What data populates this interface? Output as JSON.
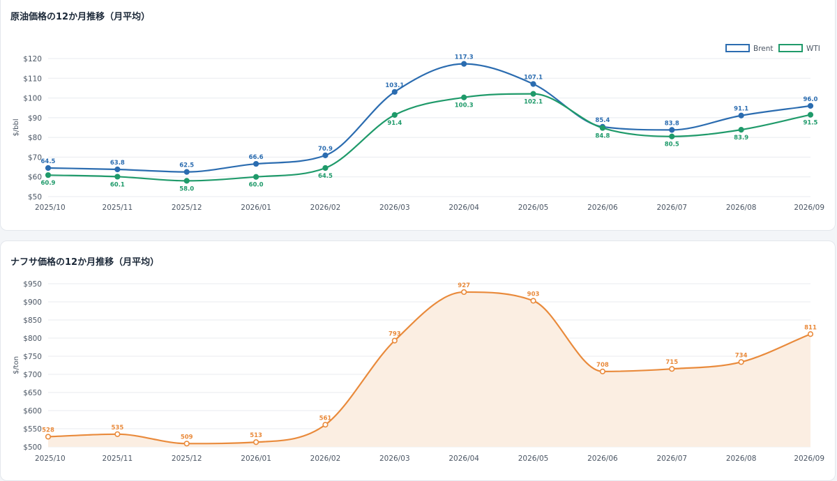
{
  "colors": {
    "brent": "#2b6cb0",
    "wti": "#1f9a6a",
    "naphtha": "#e98a3b",
    "naphtha_fill": "#fbeee2",
    "grid": "#e8ebef",
    "axis_text": "#4a5563"
  },
  "cards": [
    {
      "title": "原油価格の12か月推移（月平均）"
    },
    {
      "title": "ナフサ価格の12か月推移（月平均）"
    }
  ],
  "chart_data": [
    {
      "type": "line",
      "title": "原油価格の12か月推移（月平均）",
      "categories": [
        "2025/10",
        "2025/11",
        "2025/12",
        "2026/01",
        "2026/02",
        "2026/03",
        "2026/04",
        "2026/05",
        "2026/06",
        "2026/07",
        "2026/08",
        "2026/09"
      ],
      "ylabel": "$/bbl",
      "ylim": [
        50,
        120
      ],
      "yticks": [
        "$50",
        "$60",
        "$70",
        "$80",
        "$90",
        "$100",
        "$110",
        "$120"
      ],
      "ytick_values": [
        50,
        60,
        70,
        80,
        90,
        100,
        110,
        120
      ],
      "legend_position": "top-right",
      "grid": true,
      "series": [
        {
          "name": "Brent",
          "color": "#2b6cb0",
          "values": [
            64.5,
            63.8,
            62.5,
            66.6,
            70.9,
            103.1,
            117.3,
            107.1,
            85.4,
            83.8,
            91.1,
            96.0
          ],
          "labels": [
            "64.5",
            "63.8",
            "62.5",
            "66.6",
            "70.9",
            "103.1",
            "117.3",
            "107.1",
            "85.4",
            "83.8",
            "91.1",
            "96.0"
          ]
        },
        {
          "name": "WTI",
          "color": "#1f9a6a",
          "values": [
            60.9,
            60.1,
            58.0,
            60.0,
            64.5,
            91.4,
            100.3,
            102.1,
            84.8,
            80.5,
            83.9,
            91.5
          ],
          "labels": [
            "60.9",
            "60.1",
            "58.0",
            "60.0",
            "64.5",
            "91.4",
            "100.3",
            "102.1",
            "84.8",
            "80.5",
            "83.9",
            "91.5"
          ]
        }
      ]
    },
    {
      "type": "area",
      "title": "ナフサ価格の12か月推移（月平均）",
      "categories": [
        "2025/10",
        "2025/11",
        "2025/12",
        "2026/01",
        "2026/02",
        "2026/03",
        "2026/04",
        "2026/05",
        "2026/06",
        "2026/07",
        "2026/08",
        "2026/09"
      ],
      "ylabel": "$/ton",
      "ylim": [
        500,
        950
      ],
      "yticks": [
        "$500",
        "$550",
        "$600",
        "$650",
        "$700",
        "$750",
        "$800",
        "$850",
        "$900",
        "$950"
      ],
      "ytick_values": [
        500,
        550,
        600,
        650,
        700,
        750,
        800,
        850,
        900,
        950
      ],
      "grid": true,
      "series": [
        {
          "color": "#e98a3b",
          "values": [
            528,
            535,
            509,
            513,
            561,
            793,
            927,
            903,
            708,
            715,
            734,
            811
          ],
          "labels": [
            "528",
            "535",
            "509",
            "513",
            "561",
            "793",
            "927",
            "903",
            "708",
            "715",
            "734",
            "811"
          ]
        }
      ]
    }
  ]
}
